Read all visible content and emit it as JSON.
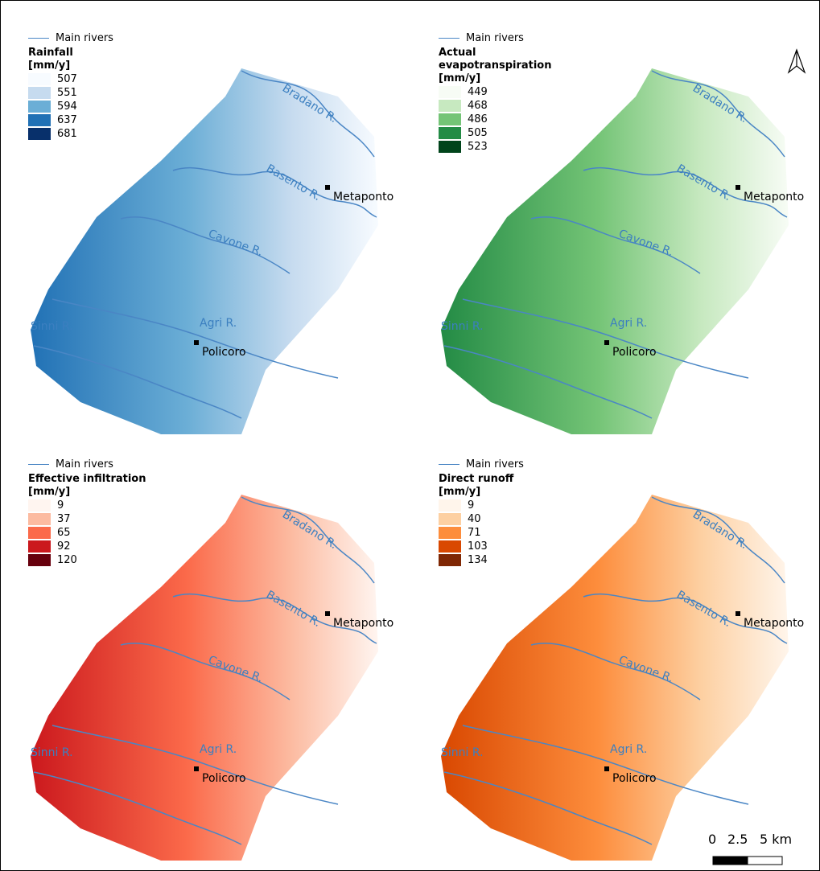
{
  "panels": [
    {
      "legend_line": "Main rivers",
      "title": "Rainfall",
      "unit": "[mm/y]",
      "classes": [
        {
          "label": 507,
          "color": "#f7fbff"
        },
        {
          "label": 551,
          "color": "#c6dbef"
        },
        {
          "label": 594,
          "color": "#6baed6"
        },
        {
          "label": 637,
          "color": "#2171b5"
        },
        {
          "label": 681,
          "color": "#08306b"
        }
      ]
    },
    {
      "legend_line": "Main rivers",
      "title": "Actual evapotranspiration",
      "unit": "[mm/y]",
      "classes": [
        {
          "label": 449,
          "color": "#f7fcf5"
        },
        {
          "label": 468,
          "color": "#c7e9c0"
        },
        {
          "label": 486,
          "color": "#74c476"
        },
        {
          "label": 505,
          "color": "#238b45"
        },
        {
          "label": 523,
          "color": "#00441b"
        }
      ]
    },
    {
      "legend_line": "Main rivers",
      "title": "Effective infiltration",
      "unit": "[mm/y]",
      "classes": [
        {
          "label": 9,
          "color": "#fff5f0"
        },
        {
          "label": 37,
          "color": "#fcbba1"
        },
        {
          "label": 65,
          "color": "#fb6a4a"
        },
        {
          "label": 92,
          "color": "#cb181d"
        },
        {
          "label": 120,
          "color": "#67000d"
        }
      ]
    },
    {
      "legend_line": "Main rivers",
      "title": "Direct runoff",
      "unit": "[mm/y]",
      "classes": [
        {
          "label": 9,
          "color": "#fff5eb"
        },
        {
          "label": 40,
          "color": "#fdd0a2"
        },
        {
          "label": 71,
          "color": "#fd8d3c"
        },
        {
          "label": 103,
          "color": "#d94801"
        },
        {
          "label": 134,
          "color": "#7f2704"
        }
      ]
    }
  ],
  "rivers": [
    "Bradano R.",
    "Basento R.",
    "Cavone R.",
    "Agri R.",
    "Sinni R."
  ],
  "towns": [
    "Metaponto",
    "Policoro"
  ],
  "scale_bar": [
    "0",
    "2.5",
    "5 km"
  ]
}
